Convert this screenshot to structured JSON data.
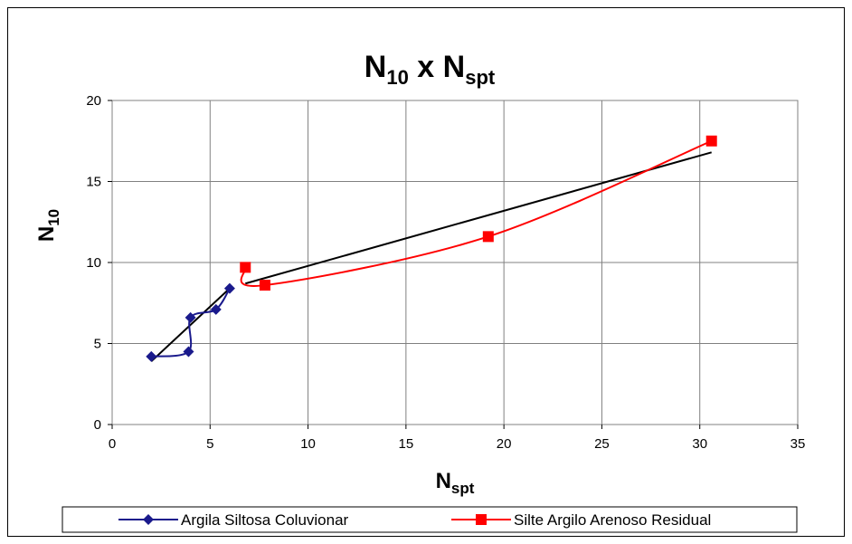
{
  "chart_data": {
    "type": "line",
    "title": {
      "main": "N",
      "sub": "10",
      "mid": " x N",
      "sub2": "spt"
    },
    "xlabel": {
      "main": "N",
      "sub": "spt"
    },
    "ylabel": {
      "main": "N",
      "sub": "10"
    },
    "xlim": [
      0,
      35
    ],
    "ylim": [
      0,
      20
    ],
    "xticks": [
      0,
      5,
      10,
      15,
      20,
      25,
      30,
      35
    ],
    "yticks": [
      0,
      5,
      10,
      15,
      20
    ],
    "grid": true,
    "legend_position": "bottom",
    "series": [
      {
        "name": "Argila Siltosa Coluvionar",
        "color": "#1a1a8c",
        "marker": "diamond",
        "x": [
          2.0,
          3.9,
          4.0,
          5.3,
          6.0
        ],
        "y": [
          4.2,
          4.5,
          6.6,
          7.1,
          8.4
        ]
      },
      {
        "name": "Silte Argilo Arenoso Residual",
        "color": "#ff0000",
        "marker": "square",
        "x": [
          6.8,
          7.8,
          19.2,
          30.6
        ],
        "y": [
          9.7,
          8.6,
          11.6,
          17.5
        ]
      }
    ],
    "trendlines": [
      {
        "color": "#000000",
        "x": [
          2.0,
          6.0
        ],
        "y": [
          3.9,
          8.4
        ]
      },
      {
        "color": "#000000",
        "x": [
          6.8,
          30.6
        ],
        "y": [
          8.7,
          16.8
        ]
      }
    ]
  }
}
